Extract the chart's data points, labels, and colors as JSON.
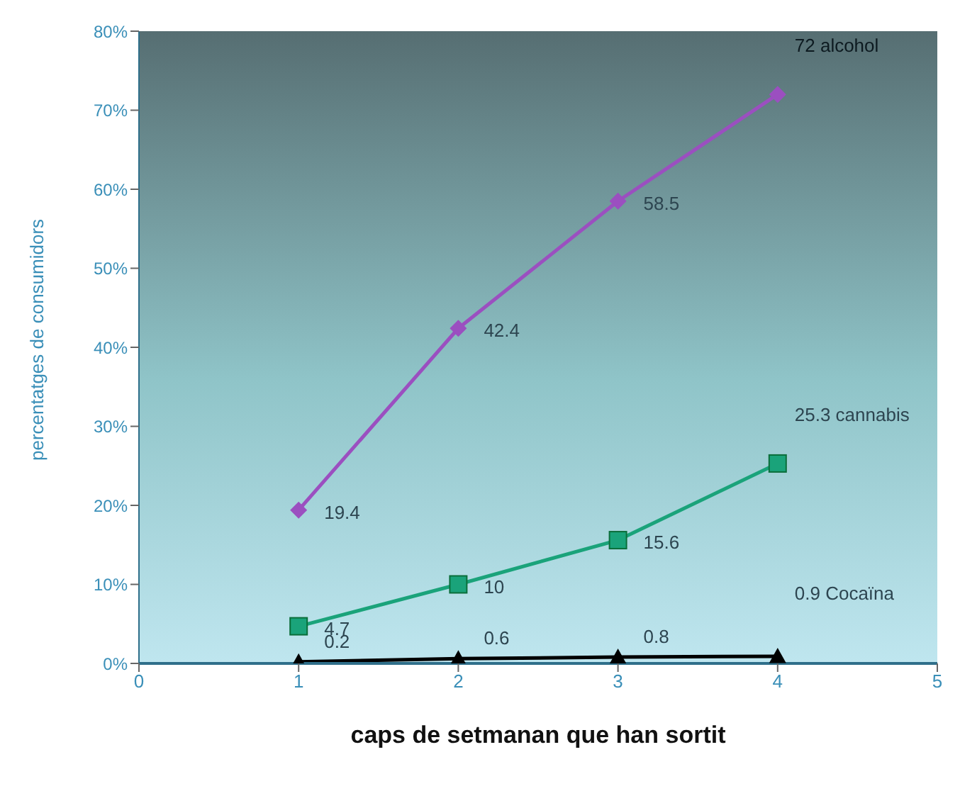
{
  "chart_data": {
    "type": "line",
    "xlabel": "caps de setmanan que han sortit",
    "ylabel": "percentatges de consumidors",
    "x": [
      1,
      2,
      3,
      4
    ],
    "series": [
      {
        "name": "72 alcohol",
        "color": "#9b4fc0",
        "marker": "diamond",
        "values": [
          19.4,
          42.4,
          58.5,
          72
        ],
        "value_labels": [
          "19.4",
          "42.4",
          "58.5",
          null
        ]
      },
      {
        "name": "25.3 cannabis",
        "color": "#1aa37a",
        "marker": "square",
        "values": [
          4.7,
          10,
          15.6,
          25.3
        ],
        "value_labels": [
          "4.7",
          "10",
          "15.6",
          null
        ]
      },
      {
        "name": "0.9 Cocaïna",
        "color": "#000000",
        "marker": "triangle",
        "values": [
          0.2,
          0.6,
          0.8,
          0.9
        ],
        "value_labels": [
          "0.2",
          "0.6",
          "0.8",
          null
        ]
      }
    ],
    "xlim": [
      0,
      5
    ],
    "xticks": [
      0,
      1,
      2,
      3,
      4,
      5
    ],
    "ylim": [
      0,
      80
    ],
    "yticks": [
      {
        "value": 0,
        "label": "0%"
      },
      {
        "value": 10,
        "label": "10%"
      },
      {
        "value": 20,
        "label": "20%"
      },
      {
        "value": 30,
        "label": "30%"
      },
      {
        "value": 40,
        "label": "40%"
      },
      {
        "value": 50,
        "label": "50%"
      },
      {
        "value": 60,
        "label": "60%"
      },
      {
        "value": 70,
        "label": "70%"
      },
      {
        "value": 80,
        "label": "80%"
      }
    ],
    "legend": false
  }
}
